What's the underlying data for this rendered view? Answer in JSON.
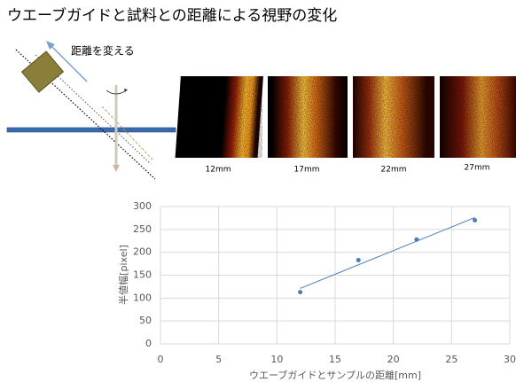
{
  "header": {
    "title": "ウエーブガイドと試料との距離による視野の変化"
  },
  "diagram": {
    "label": "距離を変える"
  },
  "images": [
    {
      "label": "12mm"
    },
    {
      "label": "17mm"
    },
    {
      "label": "22mm"
    },
    {
      "label": "27mm"
    }
  ],
  "chart_data": {
    "type": "scatter",
    "x": [
      12,
      17,
      22,
      27
    ],
    "values": [
      113,
      183,
      228,
      270
    ],
    "color": "#4a7ebb",
    "xlabel": "ウエーブガイドとサンプルの距離[mm]",
    "ylabel": "半値幅[pixel]",
    "xlim": [
      0,
      30
    ],
    "xticks": [
      0,
      5,
      10,
      15,
      20,
      25,
      30
    ],
    "ylim": [
      0,
      300
    ],
    "yticks": [
      0,
      50,
      100,
      150,
      200,
      250,
      300
    ],
    "grid": true,
    "trendline": true
  }
}
